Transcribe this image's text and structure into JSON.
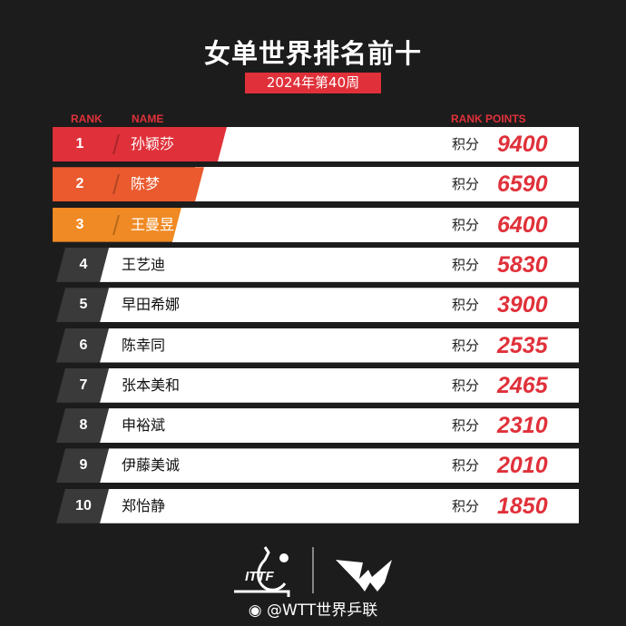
{
  "title": "女单世界排名前十",
  "subtitle": "2024年第40周",
  "headers": {
    "rank": "RANK",
    "name": "NAME",
    "points": "RANK POINTS"
  },
  "points_label": "积分",
  "colors": {
    "accent": "#e0313a",
    "rank1": "#e0313a",
    "rank2": "#ea5a2e",
    "rank3": "#f08a24",
    "rank_other": "#3a3a3a"
  },
  "rows": [
    {
      "rank": "1",
      "name": "孙颖莎",
      "points": "9400"
    },
    {
      "rank": "2",
      "name": "陈梦",
      "points": "6590"
    },
    {
      "rank": "3",
      "name": "王曼昱",
      "points": "6400"
    },
    {
      "rank": "4",
      "name": "王艺迪",
      "points": "5830"
    },
    {
      "rank": "5",
      "name": "早田希娜",
      "points": "3900"
    },
    {
      "rank": "6",
      "name": "陈幸同",
      "points": "2535"
    },
    {
      "rank": "7",
      "name": "张本美和",
      "points": "2465"
    },
    {
      "rank": "8",
      "name": "申裕斌",
      "points": "2310"
    },
    {
      "rank": "9",
      "name": "伊藤美诚",
      "points": "2010"
    },
    {
      "rank": "10",
      "name": "郑怡静",
      "points": "1850"
    }
  ],
  "logos": {
    "itttf": "ITTF",
    "wtt": "WTT"
  },
  "footer": "@WTT世界乒联"
}
